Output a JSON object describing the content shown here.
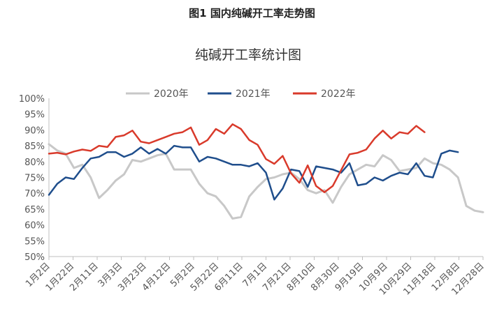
{
  "figure_caption": "图1  国内纯碱开工率走势图",
  "chart_data": {
    "type": "line",
    "title": "纯碱开工率统计图",
    "xlabel": "",
    "ylabel": "",
    "ylim": [
      50,
      100
    ],
    "y_ticks": [
      "50%",
      "55%",
      "60%",
      "65%",
      "70%",
      "75%",
      "80%",
      "85%",
      "90%",
      "95%",
      "100%"
    ],
    "x_tick_labels": [
      "1月2日",
      "1月22日",
      "2月11日",
      "3月3日",
      "3月23日",
      "4月12日",
      "5月2日",
      "5月22日",
      "6月11日",
      "7月1日",
      "7月21日",
      "8月10日",
      "8月30日",
      "9月19日",
      "10月9日",
      "10月29日",
      "11月18日",
      "12月8日",
      "12月28日"
    ],
    "x_range_weeks": [
      0,
      52
    ],
    "legend_position": "top",
    "grid": false,
    "series": [
      {
        "name": "2020年",
        "color": "#c8c8c8",
        "x": [
          0,
          1,
          2,
          3,
          4,
          5,
          6,
          7,
          8,
          9,
          10,
          11,
          12,
          13,
          14,
          15,
          16,
          17,
          18,
          19,
          20,
          21,
          22,
          23,
          24,
          25,
          26,
          27,
          28,
          29,
          30,
          31,
          32,
          33,
          34,
          35,
          36,
          37,
          38,
          39,
          40,
          41,
          42,
          43,
          44,
          45,
          46,
          47,
          48,
          49,
          50,
          51,
          52
        ],
        "values": [
          85.5,
          83.5,
          82.5,
          78,
          79,
          75,
          68.5,
          71,
          74,
          76,
          80.5,
          80,
          81,
          82,
          82.5,
          77.5,
          77.5,
          77.5,
          73,
          70,
          69,
          66,
          62,
          62.5,
          69,
          72,
          74.5,
          75,
          76,
          76.5,
          74.5,
          71,
          70,
          71,
          67,
          72,
          76,
          77.5,
          79,
          78.5,
          82,
          80.5,
          77,
          77.5,
          78,
          81,
          79.5,
          79,
          77.5,
          75,
          66,
          64.5,
          64
        ]
      },
      {
        "name": "2021年",
        "color": "#1f4e8c",
        "x": [
          0,
          1,
          2,
          3,
          4,
          5,
          6,
          7,
          8,
          9,
          10,
          11,
          12,
          13,
          14,
          15,
          16,
          17,
          18,
          19,
          20,
          21,
          22,
          23,
          24,
          25,
          26,
          27,
          28,
          29,
          30,
          31,
          32,
          33,
          34,
          35,
          36,
          37,
          38,
          39,
          40,
          41,
          42,
          43,
          44,
          45,
          46,
          47,
          48,
          49
        ],
        "values": [
          69.5,
          73,
          75,
          74.5,
          78,
          81,
          81.5,
          83,
          83,
          81.5,
          82.5,
          84.5,
          82.5,
          84,
          82.5,
          85,
          84.5,
          84.5,
          80,
          81.5,
          81,
          80,
          79,
          79,
          78.5,
          79.5,
          76.5,
          68,
          71.5,
          77.5,
          77,
          72,
          78.5,
          78,
          77.5,
          76.5,
          79.5,
          72.5,
          73,
          75,
          74,
          75.5,
          76.5,
          76,
          79.5,
          75.5,
          75,
          82.5,
          83.5,
          83
        ]
      },
      {
        "name": "2022年",
        "color": "#d93a2b",
        "x": [
          0,
          1,
          2,
          3,
          4,
          5,
          6,
          7,
          8,
          9,
          10,
          11,
          12,
          13,
          14,
          15,
          16,
          17,
          18,
          19,
          20,
          21,
          22,
          23,
          24,
          25,
          26,
          27,
          28,
          29,
          30,
          31,
          32,
          33,
          34,
          35,
          36,
          37,
          38,
          39,
          40,
          41,
          42,
          43,
          44,
          45
        ],
        "values": [
          82.5,
          82.8,
          82.3,
          83.2,
          83.8,
          83.4,
          85,
          84.6,
          87.8,
          88.3,
          89.8,
          86.3,
          85.8,
          86.8,
          87.8,
          88.8,
          89.3,
          90.8,
          85.3,
          86.8,
          90.3,
          88.8,
          91.8,
          90.3,
          86.8,
          85.3,
          80.8,
          79.3,
          81.8,
          76.3,
          73.3,
          78.8,
          72.3,
          70.3,
          72.3,
          77.3,
          82.3,
          82.8,
          83.8,
          87.3,
          89.8,
          87.3,
          89.3,
          88.8,
          91.3,
          89.3
        ]
      }
    ]
  }
}
